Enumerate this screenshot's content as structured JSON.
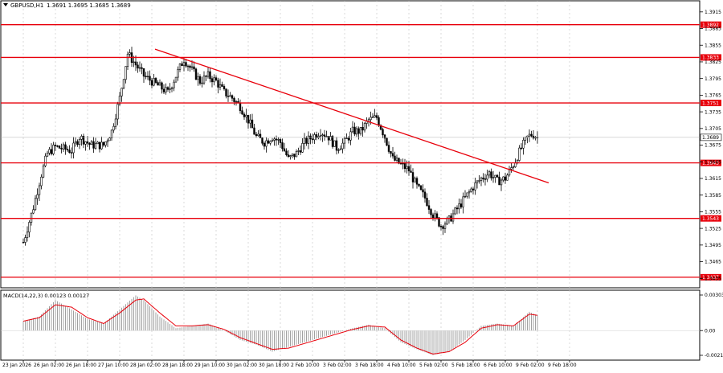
{
  "header": {
    "symbol_label": "GBPUSD,H1",
    "ohlc_text": "1.3691 1.3695 1.3685 1.3689"
  },
  "macd": {
    "label": "MACD(14,22,3) 0.00123 0.00127",
    "ticks": [
      "0.00303",
      "0.00",
      "-0.00211"
    ]
  },
  "colors": {
    "background": "#ffffff",
    "frame": "#000000",
    "grid": "#c8c8c8",
    "candle": "#000000",
    "level_line": "#e8000b",
    "trendline": "#e8000b",
    "level_badge": "#e8000b",
    "level_badge_text": "#ffffff",
    "macd_hist": "#a0a0a0",
    "macd_signal": "#e8000b",
    "price_badge": "#ffffff"
  },
  "chart_data": {
    "type": "candlestick",
    "symbol": "GBPUSD",
    "timeframe": "H1",
    "price_axis": {
      "range": [
        1.3418,
        1.3935
      ],
      "ticks": [
        "1.3915",
        "1.3885",
        "1.3855",
        "1.3825",
        "1.3795",
        "1.3765",
        "1.3735",
        "1.3705",
        "1.3675",
        "1.3645",
        "1.3615",
        "1.3585",
        "1.3555",
        "1.3525",
        "1.3495",
        "1.3465",
        "1.3435"
      ]
    },
    "time_axis": {
      "labels": [
        "23 Jan 2026",
        "26 Jan 02:00",
        "26 Jan 18:00",
        "27 Jan 10:00",
        "28 Jan 02:00",
        "28 Jan 18:00",
        "29 Jan 10:00",
        "30 Jan 02:00",
        "30 Jan 18:00",
        "2 Feb 10:00",
        "3 Feb 02:00",
        "3 Feb 18:00",
        "4 Feb 10:00",
        "5 Feb 02:00",
        "5 Feb 18:00",
        "6 Feb 10:00",
        "9 Feb 02:00",
        "9 Feb 18:00"
      ]
    },
    "levels": [
      {
        "value": 1.3892,
        "label": "1.3892"
      },
      {
        "value": 1.3833,
        "label": "1.3833"
      },
      {
        "value": 1.3751,
        "label": "1.3751"
      },
      {
        "value": 1.3643,
        "label": "1.3643"
      },
      {
        "value": 1.3543,
        "label": "1.3543"
      },
      {
        "value": 1.3437,
        "label": "1.3437"
      }
    ],
    "current_price": {
      "value": 1.3689,
      "label": "1.3689"
    },
    "trendline": {
      "from": [
        8.2,
        1.3848
      ],
      "to": [
        32.7,
        1.3607
      ]
    },
    "close_path": [
      [
        0,
        1.35
      ],
      [
        0.6,
        1.356
      ],
      [
        1.1,
        1.362
      ],
      [
        1.5,
        1.366
      ],
      [
        2.0,
        1.3672
      ],
      [
        3.0,
        1.3665
      ],
      [
        3.5,
        1.369
      ],
      [
        4.2,
        1.3675
      ],
      [
        5.0,
        1.3675
      ],
      [
        5.5,
        1.37
      ],
      [
        6.0,
        1.376
      ],
      [
        6.5,
        1.384
      ],
      [
        7.0,
        1.382
      ],
      [
        7.5,
        1.38
      ],
      [
        8.0,
        1.379
      ],
      [
        8.5,
        1.378
      ],
      [
        9.0,
        1.377
      ],
      [
        9.5,
        1.38
      ],
      [
        10.0,
        1.383
      ],
      [
        10.5,
        1.381
      ],
      [
        11.0,
        1.379
      ],
      [
        11.5,
        1.38
      ],
      [
        12.0,
        1.379
      ],
      [
        12.5,
        1.377
      ],
      [
        13.0,
        1.376
      ],
      [
        13.5,
        1.3745
      ],
      [
        14.0,
        1.372
      ],
      [
        14.5,
        1.369
      ],
      [
        15.0,
        1.368
      ],
      [
        15.5,
        1.369
      ],
      [
        16.0,
        1.368
      ],
      [
        16.5,
        1.365
      ],
      [
        17.0,
        1.366
      ],
      [
        17.5,
        1.368
      ],
      [
        18.0,
        1.369
      ],
      [
        18.5,
        1.37
      ],
      [
        19.0,
        1.369
      ],
      [
        19.5,
        1.367
      ],
      [
        20.0,
        1.368
      ],
      [
        20.5,
        1.37
      ],
      [
        21.0,
        1.37
      ],
      [
        21.5,
        1.372
      ],
      [
        22.0,
        1.3725
      ],
      [
        22.5,
        1.369
      ],
      [
        23.0,
        1.365
      ],
      [
        23.5,
        1.364
      ],
      [
        24.0,
        1.363
      ],
      [
        24.5,
        1.36
      ],
      [
        25.0,
        1.358
      ],
      [
        25.5,
        1.355
      ],
      [
        26.0,
        1.353
      ],
      [
        26.5,
        1.354
      ],
      [
        27.0,
        1.356
      ],
      [
        27.5,
        1.358
      ],
      [
        28.0,
        1.36
      ],
      [
        28.5,
        1.3615
      ],
      [
        29.0,
        1.3625
      ],
      [
        29.5,
        1.361
      ],
      [
        30.0,
        1.3615
      ],
      [
        30.5,
        1.364
      ],
      [
        31.0,
        1.367
      ],
      [
        31.4,
        1.369
      ],
      [
        31.7,
        1.3695
      ],
      [
        32.0,
        1.3689
      ]
    ],
    "macd_series": {
      "ylim": [
        -0.00211,
        0.00303
      ],
      "hist_path": [
        [
          0,
          0.0008
        ],
        [
          1.0,
          0.0012
        ],
        [
          2.0,
          0.0026
        ],
        [
          3.0,
          0.0018
        ],
        [
          4.0,
          0.001
        ],
        [
          5.0,
          0.0006
        ],
        [
          6.0,
          0.0018
        ],
        [
          7.0,
          0.003
        ],
        [
          7.5,
          0.0026
        ],
        [
          8.5,
          0.0012
        ],
        [
          9.5,
          0.0002
        ],
        [
          10.5,
          0.0004
        ],
        [
          11.5,
          0.0006
        ],
        [
          12.5,
          0.0
        ],
        [
          13.5,
          -0.0008
        ],
        [
          14.5,
          -0.0012
        ],
        [
          15.5,
          -0.0018
        ],
        [
          16.5,
          -0.0014
        ],
        [
          17.5,
          -0.001
        ],
        [
          18.5,
          -0.0006
        ],
        [
          19.5,
          -0.0002
        ],
        [
          20.5,
          0.0002
        ],
        [
          21.5,
          0.0005
        ],
        [
          22.5,
          0.0002
        ],
        [
          23.5,
          -0.001
        ],
        [
          24.5,
          -0.0016
        ],
        [
          25.5,
          -0.0021
        ],
        [
          26.5,
          -0.0018
        ],
        [
          27.5,
          -0.0008
        ],
        [
          28.5,
          0.0004
        ],
        [
          29.5,
          0.0006
        ],
        [
          30.5,
          0.0004
        ],
        [
          31.0,
          0.001
        ],
        [
          31.5,
          0.0016
        ],
        [
          32.0,
          0.0013
        ]
      ],
      "signal_path": [
        [
          0,
          0.0008
        ],
        [
          1.0,
          0.0011
        ],
        [
          2.0,
          0.0022
        ],
        [
          3.0,
          0.002
        ],
        [
          4.0,
          0.0011
        ],
        [
          5.0,
          0.0006
        ],
        [
          6.0,
          0.0015
        ],
        [
          7.0,
          0.0026
        ],
        [
          7.5,
          0.0027
        ],
        [
          8.5,
          0.0015
        ],
        [
          9.5,
          0.0004
        ],
        [
          10.5,
          0.0004
        ],
        [
          11.5,
          0.0005
        ],
        [
          12.5,
          0.0001
        ],
        [
          13.5,
          -0.0006
        ],
        [
          14.5,
          -0.0011
        ],
        [
          15.5,
          -0.0016
        ],
        [
          16.5,
          -0.0015
        ],
        [
          17.5,
          -0.0011
        ],
        [
          18.5,
          -0.0007
        ],
        [
          19.5,
          -0.0003
        ],
        [
          20.5,
          0.0001
        ],
        [
          21.5,
          0.0004
        ],
        [
          22.5,
          0.0003
        ],
        [
          23.5,
          -0.0008
        ],
        [
          24.5,
          -0.0015
        ],
        [
          25.5,
          -0.002
        ],
        [
          26.5,
          -0.0018
        ],
        [
          27.5,
          -0.001
        ],
        [
          28.5,
          0.0002
        ],
        [
          29.5,
          0.0005
        ],
        [
          30.5,
          0.0004
        ],
        [
          31.0,
          0.0009
        ],
        [
          31.5,
          0.0014
        ],
        [
          32.0,
          0.0013
        ]
      ]
    }
  }
}
